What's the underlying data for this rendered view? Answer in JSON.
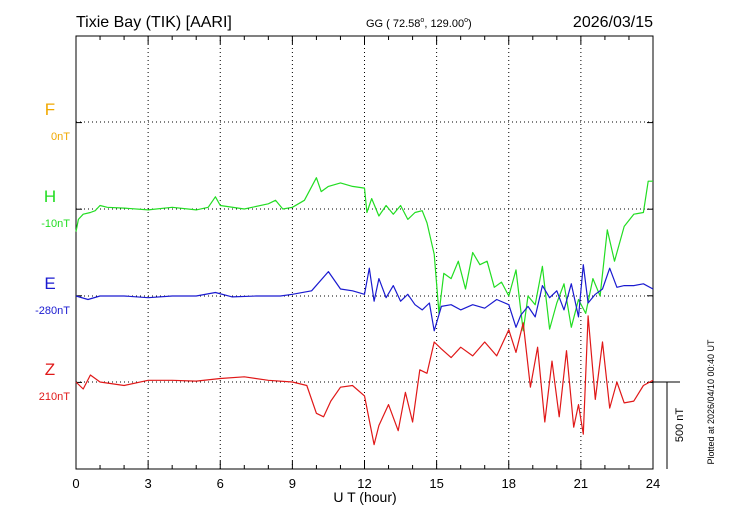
{
  "header": {
    "station": "Tixie Bay (TIK)  [AARI]",
    "coords": "GG ( 72.58",
    "coords_deg1": "o",
    "coords_mid": ", 129.00",
    "coords_deg2": "o",
    "coords_end": ")",
    "date": "2026/03/15"
  },
  "plotted_note": "Plotted at 2026/04/10 00:40 UT",
  "scale_label": "500 nT",
  "colors": {
    "F": "#f0a800",
    "H": "#22dd22",
    "E": "#1a1ad0",
    "Z": "#e01818",
    "axis": "#000000"
  },
  "chart_data": {
    "type": "line",
    "xlabel": "U T (hour)",
    "xlim": [
      0,
      24
    ],
    "x_ticks": [
      0,
      3,
      6,
      9,
      12,
      15,
      18,
      21,
      24
    ],
    "ylabel": "",
    "scale_nT": 500,
    "series": [
      {
        "name": "F",
        "baseline_label": "0nT",
        "color": "#f0a800",
        "points": []
      },
      {
        "name": "H",
        "baseline_label": "-10nT",
        "color": "#22dd22",
        "points": [
          [
            0,
            -130
          ],
          [
            0.1,
            -60
          ],
          [
            0.3,
            -30
          ],
          [
            0.6,
            -20
          ],
          [
            0.8,
            -10
          ],
          [
            1.0,
            20
          ],
          [
            1.3,
            10
          ],
          [
            2.0,
            5
          ],
          [
            3.0,
            -5
          ],
          [
            4.0,
            10
          ],
          [
            5.0,
            -5
          ],
          [
            5.5,
            10
          ],
          [
            5.8,
            70
          ],
          [
            6.0,
            20
          ],
          [
            7.0,
            0
          ],
          [
            8.0,
            30
          ],
          [
            8.3,
            50
          ],
          [
            8.6,
            0
          ],
          [
            9.0,
            10
          ],
          [
            9.5,
            50
          ],
          [
            10.0,
            180
          ],
          [
            10.2,
            100
          ],
          [
            10.5,
            130
          ],
          [
            11.0,
            150
          ],
          [
            11.5,
            130
          ],
          [
            12.0,
            120
          ],
          [
            12.1,
            -20
          ],
          [
            12.3,
            60
          ],
          [
            12.6,
            -40
          ],
          [
            12.9,
            20
          ],
          [
            13.2,
            -30
          ],
          [
            13.5,
            20
          ],
          [
            13.8,
            -60
          ],
          [
            14.1,
            -20
          ],
          [
            14.4,
            -10
          ],
          [
            14.6,
            -80
          ],
          [
            14.9,
            -260
          ],
          [
            15.1,
            -600
          ],
          [
            15.3,
            -370
          ],
          [
            15.6,
            -400
          ],
          [
            15.9,
            -300
          ],
          [
            16.2,
            -460
          ],
          [
            16.5,
            -250
          ],
          [
            16.8,
            -320
          ],
          [
            17.1,
            -300
          ],
          [
            17.4,
            -450
          ],
          [
            17.7,
            -420
          ],
          [
            18.0,
            -500
          ],
          [
            18.3,
            -350
          ],
          [
            18.6,
            -700
          ],
          [
            18.8,
            -500
          ],
          [
            19.1,
            -550
          ],
          [
            19.4,
            -330
          ],
          [
            19.7,
            -690
          ],
          [
            20.0,
            -540
          ],
          [
            20.3,
            -430
          ],
          [
            20.6,
            -680
          ],
          [
            20.9,
            -520
          ],
          [
            21.2,
            -600
          ],
          [
            21.5,
            -400
          ],
          [
            21.8,
            -500
          ],
          [
            22.1,
            -120
          ],
          [
            22.4,
            -300
          ],
          [
            22.8,
            -100
          ],
          [
            23.2,
            -30
          ],
          [
            23.6,
            -20
          ],
          [
            23.8,
            160
          ],
          [
            24.0,
            160
          ]
        ]
      },
      {
        "name": "E",
        "baseline_label": "-280nT",
        "color": "#1a1ad0",
        "points": [
          [
            0,
            0
          ],
          [
            0.5,
            -20
          ],
          [
            1.0,
            0
          ],
          [
            2.0,
            0
          ],
          [
            3.0,
            -10
          ],
          [
            4.0,
            0
          ],
          [
            5.0,
            0
          ],
          [
            5.8,
            20
          ],
          [
            6.5,
            -5
          ],
          [
            7.5,
            0
          ],
          [
            8.5,
            0
          ],
          [
            9.0,
            10
          ],
          [
            9.8,
            30
          ],
          [
            10.5,
            140
          ],
          [
            11.0,
            40
          ],
          [
            11.5,
            30
          ],
          [
            12.0,
            10
          ],
          [
            12.2,
            160
          ],
          [
            12.4,
            -30
          ],
          [
            12.6,
            100
          ],
          [
            12.9,
            -10
          ],
          [
            13.2,
            60
          ],
          [
            13.5,
            -30
          ],
          [
            13.8,
            10
          ],
          [
            14.1,
            -50
          ],
          [
            14.4,
            -80
          ],
          [
            14.7,
            -40
          ],
          [
            14.9,
            -200
          ],
          [
            15.2,
            -60
          ],
          [
            15.6,
            -50
          ],
          [
            16.0,
            -80
          ],
          [
            16.5,
            -50
          ],
          [
            17.0,
            -70
          ],
          [
            17.5,
            -20
          ],
          [
            18.0,
            -50
          ],
          [
            18.3,
            -180
          ],
          [
            18.5,
            -110
          ],
          [
            18.8,
            -60
          ],
          [
            19.1,
            -120
          ],
          [
            19.4,
            60
          ],
          [
            19.7,
            -10
          ],
          [
            20.0,
            30
          ],
          [
            20.3,
            -80
          ],
          [
            20.6,
            70
          ],
          [
            20.9,
            -120
          ],
          [
            21.1,
            180
          ],
          [
            21.3,
            -40
          ],
          [
            21.6,
            10
          ],
          [
            21.9,
            40
          ],
          [
            22.2,
            160
          ],
          [
            22.5,
            50
          ],
          [
            22.8,
            60
          ],
          [
            23.2,
            60
          ],
          [
            23.6,
            70
          ],
          [
            24.0,
            40
          ]
        ]
      },
      {
        "name": "Z",
        "baseline_label": "210nT",
        "color": "#e01818",
        "points": [
          [
            0,
            0
          ],
          [
            0.3,
            -40
          ],
          [
            0.6,
            40
          ],
          [
            1.0,
            0
          ],
          [
            2.0,
            -20
          ],
          [
            3.0,
            10
          ],
          [
            4.0,
            10
          ],
          [
            5.0,
            5
          ],
          [
            6.0,
            20
          ],
          [
            7.0,
            30
          ],
          [
            8.0,
            10
          ],
          [
            9.0,
            0
          ],
          [
            9.6,
            -20
          ],
          [
            10.0,
            -180
          ],
          [
            10.3,
            -200
          ],
          [
            10.6,
            -110
          ],
          [
            11.0,
            -30
          ],
          [
            11.5,
            -20
          ],
          [
            12.0,
            -80
          ],
          [
            12.4,
            -360
          ],
          [
            12.6,
            -250
          ],
          [
            13.0,
            -130
          ],
          [
            13.4,
            -280
          ],
          [
            13.7,
            -60
          ],
          [
            14.0,
            -230
          ],
          [
            14.3,
            70
          ],
          [
            14.6,
            50
          ],
          [
            14.9,
            230
          ],
          [
            15.2,
            190
          ],
          [
            15.6,
            140
          ],
          [
            16.0,
            200
          ],
          [
            16.5,
            150
          ],
          [
            17.0,
            230
          ],
          [
            17.5,
            150
          ],
          [
            18.0,
            300
          ],
          [
            18.3,
            170
          ],
          [
            18.6,
            340
          ],
          [
            18.9,
            -30
          ],
          [
            19.2,
            200
          ],
          [
            19.5,
            -230
          ],
          [
            19.8,
            120
          ],
          [
            20.1,
            -200
          ],
          [
            20.4,
            180
          ],
          [
            20.7,
            -260
          ],
          [
            20.9,
            -130
          ],
          [
            21.1,
            -300
          ],
          [
            21.3,
            380
          ],
          [
            21.6,
            -100
          ],
          [
            21.9,
            230
          ],
          [
            22.2,
            -150
          ],
          [
            22.5,
            0
          ],
          [
            22.8,
            -120
          ],
          [
            23.2,
            -110
          ],
          [
            23.6,
            -20
          ],
          [
            24.0,
            10
          ]
        ]
      }
    ]
  }
}
